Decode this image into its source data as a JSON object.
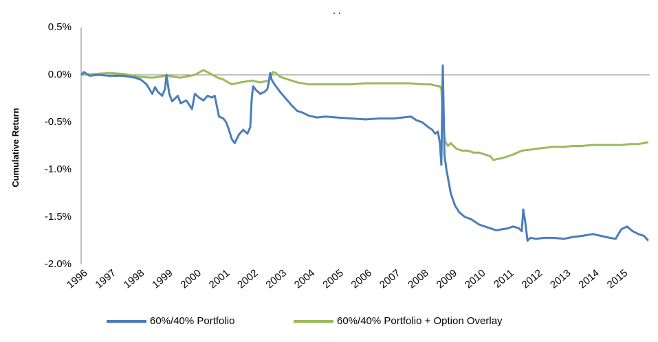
{
  "chart_data": {
    "type": "line",
    "title": ". .",
    "xlabel": "",
    "ylabel": "Cumulative Return",
    "ylim": [
      -2.0,
      0.5
    ],
    "xlim": [
      1996,
      2016
    ],
    "y_ticks": [
      "0.5%",
      "0.0%",
      "-0.5%",
      "-1.0%",
      "-1.5%",
      "-2.0%"
    ],
    "y_tick_values": [
      0.5,
      0.0,
      -0.5,
      -1.0,
      -1.5,
      -2.0
    ],
    "x_ticks": [
      "1996",
      "1997",
      "1998",
      "1999",
      "2000",
      "2001",
      "2002",
      "2003",
      "2004",
      "2005",
      "2006",
      "2007",
      "2008",
      "2009",
      "2010",
      "2011",
      "2012",
      "2013",
      "2014",
      "2015"
    ],
    "x_tick_values": [
      1996,
      1997,
      1998,
      1999,
      2000,
      2001,
      2002,
      2003,
      2004,
      2005,
      2006,
      2007,
      2008,
      2009,
      2010,
      2011,
      2012,
      2013,
      2014,
      2015
    ],
    "grid": false,
    "legend_position": "bottom",
    "series": [
      {
        "name": "60%/40% Portfolio",
        "color": "#4a7ebb",
        "x": [
          1996.0,
          1996.1,
          1996.3,
          1996.6,
          1997.0,
          1997.5,
          1997.9,
          1998.1,
          1998.3,
          1998.5,
          1998.6,
          1998.7,
          1998.85,
          1998.95,
          1999.0,
          1999.1,
          1999.2,
          1999.4,
          1999.5,
          1999.7,
          1999.9,
          2000.0,
          2000.15,
          2000.3,
          2000.45,
          2000.6,
          2000.7,
          2000.85,
          2001.0,
          2001.1,
          2001.2,
          2001.3,
          2001.4,
          2001.55,
          2001.7,
          2001.85,
          2001.95,
          2002.0,
          2002.05,
          2002.15,
          2002.3,
          2002.45,
          2002.55,
          2002.6,
          2002.65,
          2002.7,
          2002.8,
          2003.0,
          2003.2,
          2003.4,
          2003.6,
          2003.8,
          2004.0,
          2004.3,
          2004.6,
          2005.0,
          2005.5,
          2006.0,
          2006.5,
          2007.0,
          2007.3,
          2007.6,
          2007.8,
          2008.0,
          2008.2,
          2008.35,
          2008.45,
          2008.55,
          2008.62,
          2008.67,
          2008.72,
          2008.78,
          2008.85,
          2009.0,
          2009.15,
          2009.3,
          2009.5,
          2009.7,
          2010.0,
          2010.2,
          2010.4,
          2010.6,
          2010.8,
          2011.0,
          2011.2,
          2011.4,
          2011.5,
          2011.55,
          2011.62,
          2011.7,
          2011.8,
          2012.0,
          2012.3,
          2012.6,
          2013.0,
          2013.3,
          2013.6,
          2014.0,
          2014.3,
          2014.6,
          2014.8,
          2015.0,
          2015.2,
          2015.4,
          2015.6,
          2015.8,
          2015.95
        ],
        "values": [
          0.0,
          0.03,
          -0.01,
          0.0,
          -0.01,
          -0.01,
          -0.03,
          -0.05,
          -0.1,
          -0.2,
          -0.13,
          -0.18,
          -0.22,
          -0.15,
          -0.0,
          -0.2,
          -0.28,
          -0.22,
          -0.3,
          -0.27,
          -0.36,
          -0.2,
          -0.24,
          -0.27,
          -0.22,
          -0.24,
          -0.22,
          -0.44,
          -0.46,
          -0.5,
          -0.58,
          -0.68,
          -0.72,
          -0.63,
          -0.58,
          -0.62,
          -0.55,
          -0.25,
          -0.12,
          -0.16,
          -0.2,
          -0.18,
          -0.15,
          -0.08,
          0.02,
          -0.05,
          -0.1,
          -0.18,
          -0.25,
          -0.32,
          -0.38,
          -0.4,
          -0.43,
          -0.45,
          -0.44,
          -0.45,
          -0.46,
          -0.47,
          -0.46,
          -0.46,
          -0.45,
          -0.44,
          -0.48,
          -0.5,
          -0.55,
          -0.58,
          -0.62,
          -0.6,
          -0.72,
          -0.95,
          0.1,
          -0.85,
          -1.0,
          -1.25,
          -1.38,
          -1.45,
          -1.5,
          -1.52,
          -1.58,
          -1.6,
          -1.62,
          -1.64,
          -1.63,
          -1.62,
          -1.6,
          -1.62,
          -1.65,
          -1.42,
          -1.55,
          -1.75,
          -1.72,
          -1.73,
          -1.72,
          -1.72,
          -1.73,
          -1.71,
          -1.7,
          -1.68,
          -1.7,
          -1.72,
          -1.73,
          -1.63,
          -1.6,
          -1.65,
          -1.68,
          -1.7,
          -1.75
        ]
      },
      {
        "name": "60%/40% Portfolio + Option Overlay",
        "color": "#9bbb59",
        "x": [
          1996.0,
          1996.5,
          1997.0,
          1997.5,
          1998.0,
          1998.5,
          1999.0,
          1999.5,
          2000.0,
          2000.3,
          2000.5,
          2000.8,
          2001.0,
          2001.3,
          2001.6,
          2002.0,
          2002.3,
          2002.6,
          2002.75,
          2002.85,
          2003.0,
          2003.3,
          2003.6,
          2004.0,
          2004.5,
          2005.0,
          2005.5,
          2006.0,
          2006.5,
          2007.0,
          2007.5,
          2008.0,
          2008.3,
          2008.55,
          2008.62,
          2008.67,
          2008.7,
          2008.75,
          2008.8,
          2008.9,
          2009.0,
          2009.2,
          2009.4,
          2009.6,
          2009.8,
          2010.0,
          2010.2,
          2010.4,
          2010.5,
          2010.6,
          2010.8,
          2011.0,
          2011.2,
          2011.5,
          2011.8,
          2012.0,
          2012.3,
          2012.6,
          2013.0,
          2013.3,
          2013.6,
          2014.0,
          2014.3,
          2014.6,
          2015.0,
          2015.3,
          2015.6,
          2015.8,
          2015.95
        ],
        "values": [
          0.0,
          0.01,
          0.02,
          0.01,
          -0.02,
          -0.03,
          -0.01,
          -0.03,
          0.0,
          0.05,
          0.02,
          -0.03,
          -0.05,
          -0.1,
          -0.08,
          -0.06,
          -0.08,
          -0.06,
          0.03,
          0.02,
          -0.02,
          -0.05,
          -0.08,
          -0.1,
          -0.1,
          -0.1,
          -0.1,
          -0.09,
          -0.09,
          -0.09,
          -0.09,
          -0.1,
          -0.1,
          -0.12,
          -0.12,
          -0.15,
          -0.3,
          -0.55,
          -0.7,
          -0.75,
          -0.72,
          -0.78,
          -0.8,
          -0.8,
          -0.82,
          -0.82,
          -0.84,
          -0.86,
          -0.9,
          -0.89,
          -0.88,
          -0.86,
          -0.84,
          -0.8,
          -0.79,
          -0.78,
          -0.77,
          -0.76,
          -0.76,
          -0.75,
          -0.75,
          -0.74,
          -0.74,
          -0.74,
          -0.74,
          -0.73,
          -0.73,
          -0.72,
          -0.71
        ]
      }
    ]
  }
}
